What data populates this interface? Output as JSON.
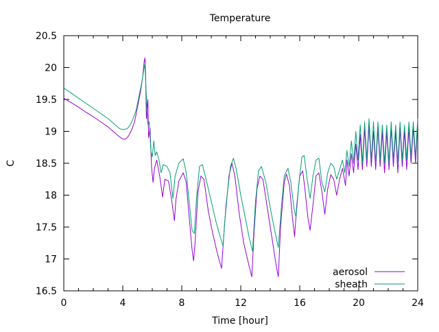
{
  "chart_data": {
    "type": "line",
    "title": "Temperature",
    "xlabel": "Time [hour]",
    "ylabel": "C",
    "xlim": [
      0,
      24
    ],
    "ylim": [
      16.5,
      20.5
    ],
    "xticks": [
      0,
      4,
      8,
      12,
      16,
      20,
      24
    ],
    "xtick_labels": [
      "0",
      "4",
      "8",
      "12",
      "16",
      "20",
      "24"
    ],
    "yticks": [
      16.5,
      17,
      17.5,
      18,
      18.5,
      19,
      19.5,
      20,
      20.5
    ],
    "ytick_labels": [
      "16.5",
      "17",
      "17.5",
      "18",
      "18.5",
      "19",
      "19.5",
      "20",
      "20.5"
    ],
    "grid": false,
    "legend_position": "bottom-right",
    "series": [
      {
        "name": "aerosol",
        "color": "#9400d3",
        "points": [
          [
            0,
            19.52
          ],
          [
            0.5,
            19.45
          ],
          [
            1,
            19.38
          ],
          [
            1.5,
            19.3
          ],
          [
            2,
            19.23
          ],
          [
            2.5,
            19.15
          ],
          [
            3,
            19.07
          ],
          [
            3.5,
            18.97
          ],
          [
            3.8,
            18.91
          ],
          [
            4.0,
            18.88
          ],
          [
            4.2,
            18.88
          ],
          [
            4.4,
            18.93
          ],
          [
            4.6,
            19.02
          ],
          [
            4.8,
            19.15
          ],
          [
            5.0,
            19.38
          ],
          [
            5.2,
            19.62
          ],
          [
            5.35,
            19.85
          ],
          [
            5.45,
            20.1
          ],
          [
            5.5,
            20.15
          ],
          [
            5.55,
            19.9
          ],
          [
            5.6,
            19.2
          ],
          [
            5.7,
            19.5
          ],
          [
            5.75,
            18.9
          ],
          [
            5.85,
            19.05
          ],
          [
            5.95,
            18.45
          ],
          [
            6.05,
            18.2
          ],
          [
            6.15,
            18.42
          ],
          [
            6.3,
            18.55
          ],
          [
            6.5,
            18.3
          ],
          [
            6.7,
            17.97
          ],
          [
            6.85,
            18.25
          ],
          [
            7.1,
            18.22
          ],
          [
            7.3,
            17.95
          ],
          [
            7.5,
            17.6
          ],
          [
            7.6,
            17.92
          ],
          [
            7.8,
            18.22
          ],
          [
            8.1,
            18.35
          ],
          [
            8.3,
            18.2
          ],
          [
            8.5,
            17.65
          ],
          [
            8.7,
            17.15
          ],
          [
            8.8,
            16.97
          ],
          [
            8.9,
            17.25
          ],
          [
            9.1,
            18.05
          ],
          [
            9.3,
            18.3
          ],
          [
            9.5,
            18.25
          ],
          [
            9.8,
            17.75
          ],
          [
            10.1,
            17.4
          ],
          [
            10.4,
            17.1
          ],
          [
            10.7,
            16.85
          ],
          [
            10.9,
            17.55
          ],
          [
            11.2,
            18.3
          ],
          [
            11.4,
            18.5
          ],
          [
            11.6,
            18.3
          ],
          [
            11.9,
            17.7
          ],
          [
            12.2,
            17.25
          ],
          [
            12.5,
            16.95
          ],
          [
            12.75,
            16.72
          ],
          [
            12.9,
            17.4
          ],
          [
            13.1,
            18.1
          ],
          [
            13.3,
            18.3
          ],
          [
            13.5,
            18.25
          ],
          [
            13.8,
            17.8
          ],
          [
            14.1,
            17.35
          ],
          [
            14.4,
            16.9
          ],
          [
            14.55,
            16.72
          ],
          [
            14.7,
            17.5
          ],
          [
            14.95,
            18.2
          ],
          [
            15.1,
            18.33
          ],
          [
            15.3,
            18.15
          ],
          [
            15.5,
            17.65
          ],
          [
            15.65,
            17.35
          ],
          [
            15.8,
            17.85
          ],
          [
            16.0,
            18.3
          ],
          [
            16.2,
            18.38
          ],
          [
            16.35,
            18.1
          ],
          [
            16.55,
            17.65
          ],
          [
            16.7,
            17.45
          ],
          [
            16.9,
            17.85
          ],
          [
            17.1,
            18.3
          ],
          [
            17.3,
            18.35
          ],
          [
            17.5,
            18.05
          ],
          [
            17.7,
            17.7
          ],
          [
            17.9,
            18.1
          ],
          [
            18.1,
            18.32
          ],
          [
            18.3,
            18.25
          ],
          [
            18.5,
            18.0
          ],
          [
            18.7,
            18.25
          ],
          [
            18.9,
            18.42
          ],
          [
            19.1,
            18.15
          ],
          [
            19.2,
            18.55
          ],
          [
            19.35,
            18.3
          ],
          [
            19.5,
            18.65
          ],
          [
            19.65,
            18.35
          ],
          [
            19.8,
            18.8
          ],
          [
            19.95,
            18.4
          ],
          [
            20.1,
            18.95
          ],
          [
            20.25,
            18.4
          ],
          [
            20.4,
            19.05
          ],
          [
            20.55,
            18.45
          ],
          [
            20.7,
            19.1
          ],
          [
            20.85,
            18.45
          ],
          [
            21.0,
            19.0
          ],
          [
            21.15,
            18.4
          ],
          [
            21.3,
            19.05
          ],
          [
            21.45,
            18.45
          ],
          [
            21.6,
            19.0
          ],
          [
            21.75,
            18.35
          ],
          [
            21.9,
            19.0
          ],
          [
            22.05,
            18.4
          ],
          [
            22.2,
            19.05
          ],
          [
            22.35,
            18.45
          ],
          [
            22.5,
            19.0
          ],
          [
            22.65,
            18.35
          ],
          [
            22.8,
            19.05
          ],
          [
            22.95,
            18.45
          ],
          [
            23.1,
            19.0
          ],
          [
            23.25,
            18.4
          ],
          [
            23.4,
            19.05
          ],
          [
            23.55,
            18.5
          ],
          [
            23.7,
            19.05
          ],
          [
            23.85,
            18.5
          ],
          [
            24,
            19.15
          ]
        ]
      },
      {
        "name": "sheath",
        "color": "#009e73",
        "points": [
          [
            0,
            19.68
          ],
          [
            0.5,
            19.6
          ],
          [
            1,
            19.52
          ],
          [
            1.5,
            19.44
          ],
          [
            2,
            19.36
          ],
          [
            2.5,
            19.28
          ],
          [
            3,
            19.2
          ],
          [
            3.5,
            19.1
          ],
          [
            3.8,
            19.04
          ],
          [
            4.0,
            19.03
          ],
          [
            4.3,
            19.04
          ],
          [
            4.5,
            19.1
          ],
          [
            4.7,
            19.2
          ],
          [
            4.9,
            19.33
          ],
          [
            5.1,
            19.55
          ],
          [
            5.3,
            19.78
          ],
          [
            5.45,
            20.0
          ],
          [
            5.5,
            20.05
          ],
          [
            5.55,
            19.8
          ],
          [
            5.65,
            19.3
          ],
          [
            5.7,
            19.1
          ],
          [
            5.8,
            19.15
          ],
          [
            5.9,
            18.7
          ],
          [
            6.0,
            18.6
          ],
          [
            6.1,
            18.85
          ],
          [
            6.2,
            18.62
          ],
          [
            6.3,
            18.68
          ],
          [
            6.45,
            18.55
          ],
          [
            6.6,
            18.35
          ],
          [
            6.75,
            18.48
          ],
          [
            7.0,
            18.45
          ],
          [
            7.2,
            18.35
          ],
          [
            7.4,
            17.95
          ],
          [
            7.55,
            18.3
          ],
          [
            7.8,
            18.5
          ],
          [
            8.1,
            18.57
          ],
          [
            8.3,
            18.35
          ],
          [
            8.5,
            17.9
          ],
          [
            8.7,
            17.45
          ],
          [
            8.85,
            17.4
          ],
          [
            9.0,
            17.95
          ],
          [
            9.2,
            18.45
          ],
          [
            9.4,
            18.48
          ],
          [
            9.7,
            18.2
          ],
          [
            10.0,
            17.9
          ],
          [
            10.3,
            17.6
          ],
          [
            10.6,
            17.35
          ],
          [
            10.8,
            17.2
          ],
          [
            11.0,
            17.85
          ],
          [
            11.3,
            18.45
          ],
          [
            11.5,
            18.58
          ],
          [
            11.7,
            18.4
          ],
          [
            12.0,
            18.0
          ],
          [
            12.3,
            17.65
          ],
          [
            12.6,
            17.3
          ],
          [
            12.8,
            17.12
          ],
          [
            13.0,
            17.9
          ],
          [
            13.2,
            18.38
          ],
          [
            13.4,
            18.45
          ],
          [
            13.7,
            18.2
          ],
          [
            14.0,
            17.8
          ],
          [
            14.3,
            17.45
          ],
          [
            14.55,
            17.18
          ],
          [
            14.75,
            17.8
          ],
          [
            14.95,
            18.3
          ],
          [
            15.2,
            18.42
          ],
          [
            15.4,
            18.2
          ],
          [
            15.6,
            17.8
          ],
          [
            15.75,
            17.65
          ],
          [
            15.95,
            18.2
          ],
          [
            16.15,
            18.6
          ],
          [
            16.3,
            18.62
          ],
          [
            16.5,
            18.25
          ],
          [
            16.7,
            17.95
          ],
          [
            16.9,
            18.3
          ],
          [
            17.1,
            18.55
          ],
          [
            17.3,
            18.58
          ],
          [
            17.5,
            18.2
          ],
          [
            17.7,
            18.05
          ],
          [
            17.9,
            18.35
          ],
          [
            18.1,
            18.5
          ],
          [
            18.3,
            18.45
          ],
          [
            18.5,
            18.25
          ],
          [
            18.7,
            18.4
          ],
          [
            18.9,
            18.55
          ],
          [
            19.05,
            18.35
          ],
          [
            19.2,
            18.7
          ],
          [
            19.35,
            18.45
          ],
          [
            19.5,
            18.85
          ],
          [
            19.65,
            18.5
          ],
          [
            19.8,
            19.0
          ],
          [
            19.95,
            18.55
          ],
          [
            20.1,
            19.1
          ],
          [
            20.25,
            18.5
          ],
          [
            20.4,
            19.15
          ],
          [
            20.55,
            18.55
          ],
          [
            20.7,
            19.2
          ],
          [
            20.85,
            18.55
          ],
          [
            21.0,
            19.15
          ],
          [
            21.15,
            18.5
          ],
          [
            21.3,
            19.15
          ],
          [
            21.45,
            18.55
          ],
          [
            21.6,
            19.1
          ],
          [
            21.75,
            18.5
          ],
          [
            21.9,
            19.1
          ],
          [
            22.05,
            18.5
          ],
          [
            22.2,
            19.15
          ],
          [
            22.35,
            18.55
          ],
          [
            22.5,
            19.1
          ],
          [
            22.65,
            18.5
          ],
          [
            22.8,
            19.15
          ],
          [
            22.95,
            18.55
          ],
          [
            23.1,
            19.1
          ],
          [
            23.25,
            18.55
          ],
          [
            23.4,
            19.15
          ],
          [
            23.55,
            18.6
          ],
          [
            23.7,
            19.15
          ],
          [
            23.85,
            18.6
          ],
          [
            24,
            19.2
          ]
        ]
      }
    ]
  }
}
